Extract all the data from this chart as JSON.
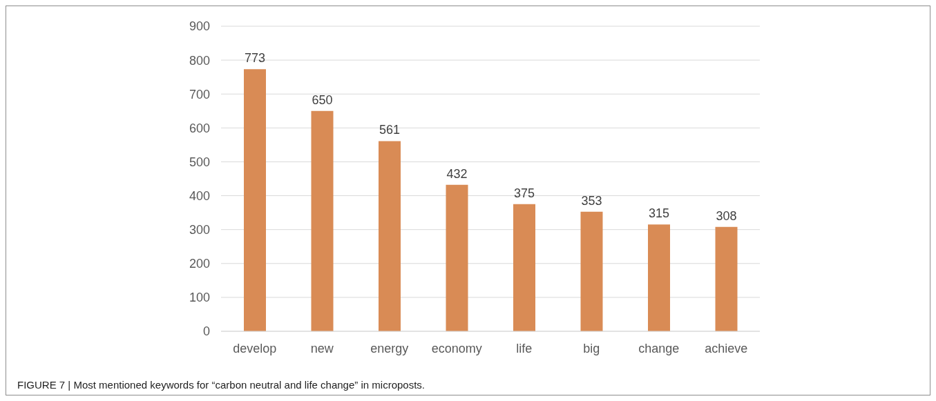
{
  "chart_data": {
    "type": "bar",
    "categories": [
      "develop",
      "new",
      "energy",
      "economy",
      "life",
      "big",
      "change",
      "achieve"
    ],
    "values": [
      773,
      650,
      561,
      432,
      375,
      353,
      315,
      308
    ],
    "color": "#d98b55",
    "ylim": [
      0,
      900
    ],
    "yticks": [
      0,
      100,
      200,
      300,
      400,
      500,
      600,
      700,
      800,
      900
    ],
    "grid": "y",
    "data_labels": true,
    "annotations": [
      "FIGURE 7 | Most mentioned keywords for “carbon neutral and life change” in microposts."
    ]
  }
}
